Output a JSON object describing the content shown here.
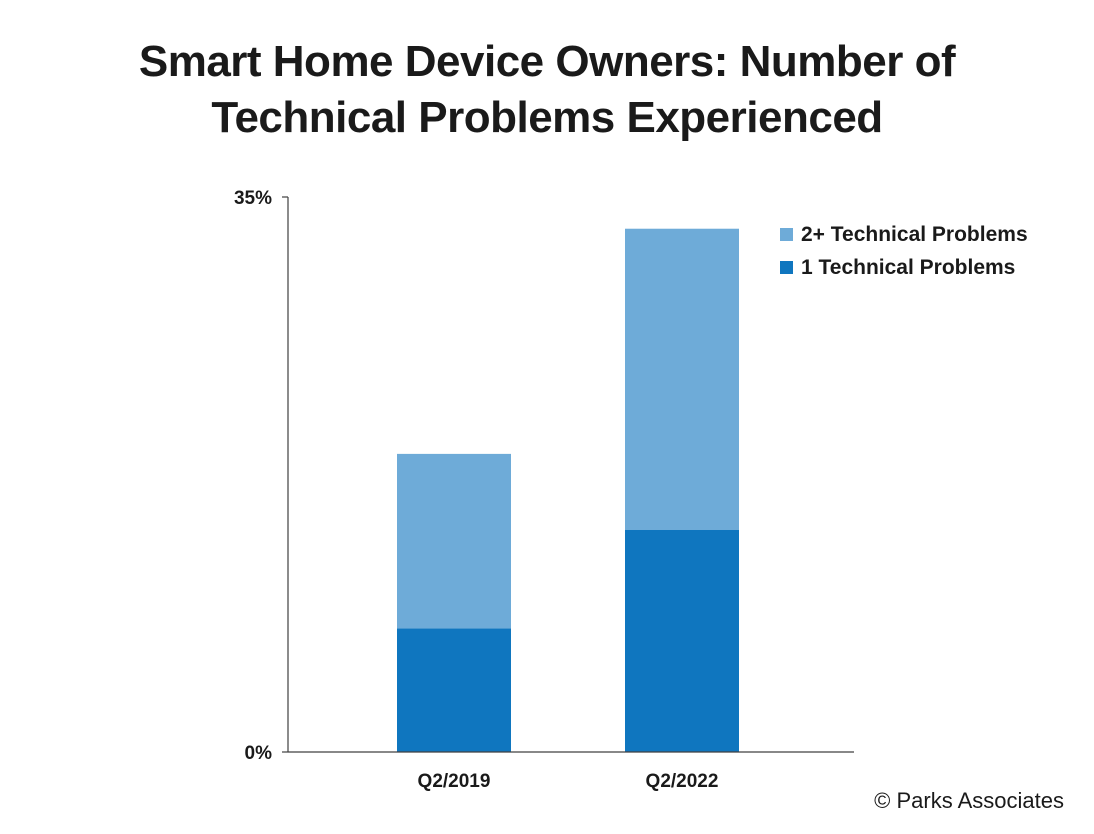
{
  "title": {
    "line1": "Smart Home Device Owners: Number of",
    "line2": "Technical Problems Experienced"
  },
  "credit": "© Parks Associates",
  "chart_data": {
    "type": "bar",
    "stacked": true,
    "title": "Smart Home Device Owners: Number of Technical Problems Experienced",
    "categories": [
      "Q2/2019",
      "Q2/2022"
    ],
    "series": [
      {
        "name": "1 Technical Problems",
        "values": [
          7.8,
          14.0
        ],
        "color": "#0f76bf"
      },
      {
        "name": "2+ Technical Problems",
        "values": [
          11.0,
          19.0
        ],
        "color": "#6eabd8"
      }
    ],
    "ylim": [
      0,
      35
    ],
    "yticks": [
      "0%",
      "35%"
    ],
    "xlabel": "",
    "ylabel": "",
    "grid": false,
    "legend_position": "top-right"
  }
}
